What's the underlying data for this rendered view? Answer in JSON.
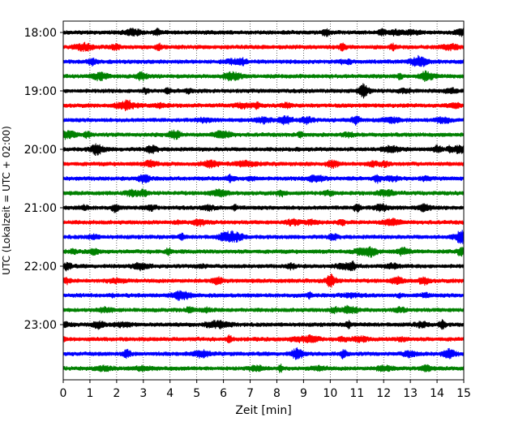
{
  "chart_data": {
    "type": "line",
    "title": "",
    "xlabel": "Zeit  [min]",
    "ylabel": "UTC (Lokalzeit = UTC + 02:00)",
    "xlim": [
      0,
      15
    ],
    "x_ticks": [
      "0",
      "1",
      "2",
      "3",
      "4",
      "5",
      "6",
      "7",
      "8",
      "9",
      "10",
      "11",
      "12",
      "13",
      "14",
      "15"
    ],
    "y_ticks": [
      "18:00",
      "19:00",
      "20:00",
      "21:00",
      "22:00",
      "23:00"
    ],
    "grid": "vertical dotted at each minute",
    "trace_start_times": [
      "18:00",
      "18:15",
      "18:30",
      "18:45",
      "19:00",
      "19:15",
      "19:30",
      "19:45",
      "20:00",
      "20:15",
      "20:30",
      "20:45",
      "21:00",
      "21:15",
      "21:30",
      "21:45",
      "22:00",
      "22:15",
      "22:30",
      "22:45",
      "23:00",
      "23:15",
      "23:30",
      "23:45"
    ],
    "color_cycle": [
      "#000000",
      "#ff0000",
      "#0000ff",
      "#008000"
    ],
    "events": [
      {
        "trace": "19:15",
        "minute": 2.4
      },
      {
        "trace": "20:30",
        "minute": 3.1
      },
      {
        "trace": "21:00",
        "minute": 11.0
      },
      {
        "trace": "21:30",
        "minute": 14.9
      },
      {
        "trace": "21:45",
        "minute": 14.9
      },
      {
        "trace": "22:15",
        "minute": 10.0
      },
      {
        "trace": "23:00",
        "minute": 14.2
      },
      {
        "trace": "23:30",
        "minute": 10.5
      }
    ]
  }
}
